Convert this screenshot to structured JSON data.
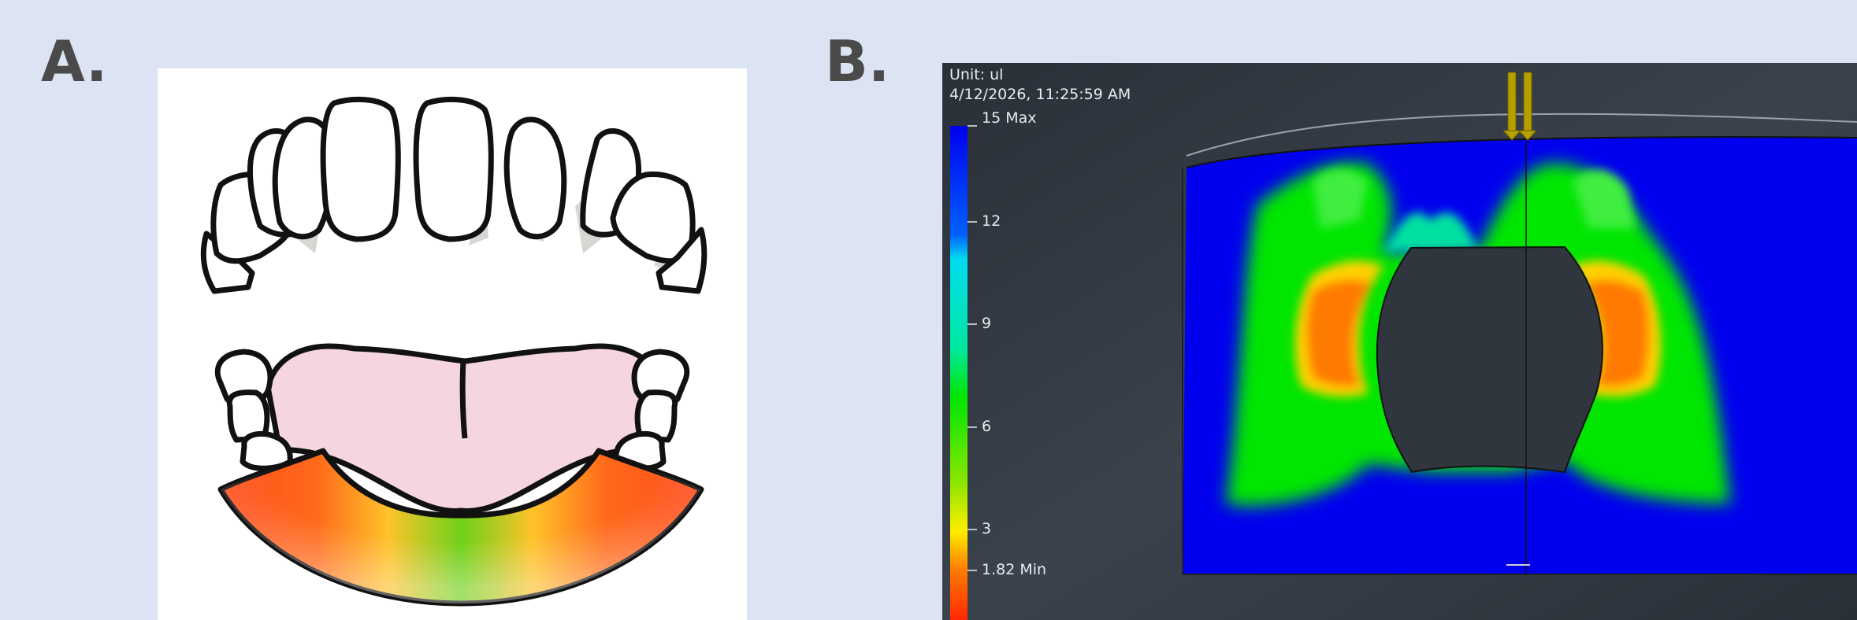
{
  "panel_a": {
    "label": "A."
  },
  "panel_b": {
    "label": "B.",
    "unit_text": "Unit: ul",
    "timestamp": "4/12/2026, 11:25:59 AM",
    "legend": {
      "max_label": "15 Max",
      "min_label": "1.82 Min",
      "ticks": [
        "12",
        "9",
        "6",
        "3"
      ],
      "max_value": 15,
      "min_value": 1.82
    },
    "colors": {
      "blue": "#0000ee",
      "cyan": "#00dcf0",
      "green": "#00e600",
      "yellow": "#ffee00",
      "orange": "#ff7a00",
      "red": "#ff2800"
    }
  }
}
